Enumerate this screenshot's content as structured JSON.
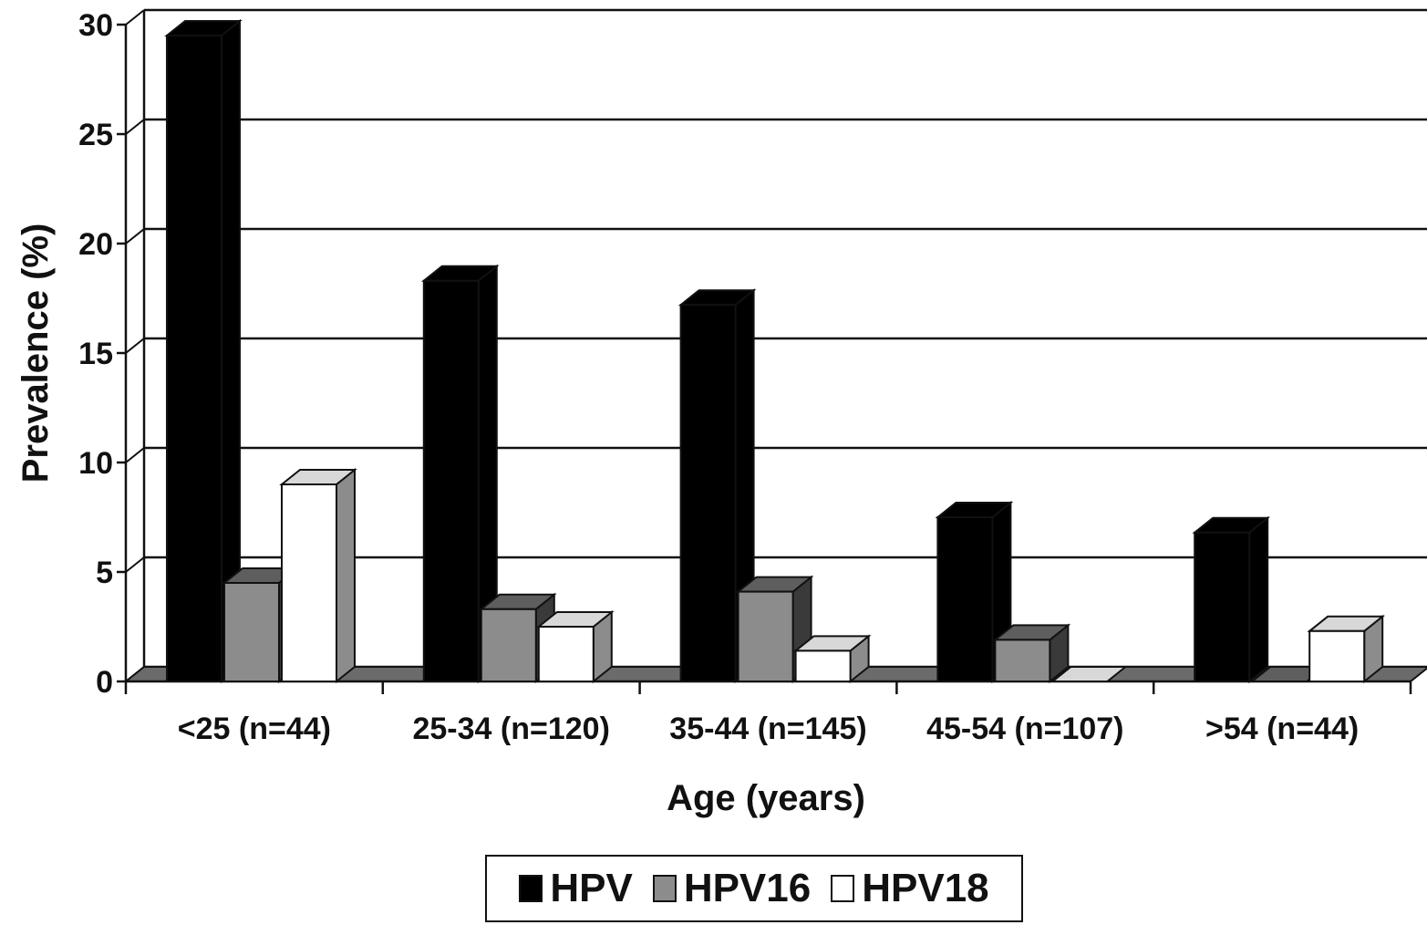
{
  "chart_data": {
    "type": "bar",
    "style": "3d-clustered",
    "xlabel": "Age (years)",
    "ylabel": "Prevalence (%)",
    "ylim": [
      0,
      30
    ],
    "yticks": [
      0,
      5,
      10,
      15,
      20,
      25,
      30
    ],
    "grid": true,
    "legend_position": "bottom",
    "categories": [
      "<25 (n=44)",
      "25-34 (n=120)",
      "35-44 (n=145)",
      "45-54 (n=107)",
      ">54 (n=44)"
    ],
    "series": [
      {
        "name": "HPV",
        "color": "#000000",
        "values": [
          29.5,
          18.3,
          17.2,
          7.5,
          6.8
        ]
      },
      {
        "name": "HPV16",
        "color": "#8c8c8c",
        "values": [
          4.5,
          3.3,
          4.1,
          1.9,
          0
        ]
      },
      {
        "name": "HPV18",
        "color": "#ffffff",
        "values": [
          9.0,
          2.5,
          1.4,
          0,
          2.3
        ]
      }
    ]
  }
}
